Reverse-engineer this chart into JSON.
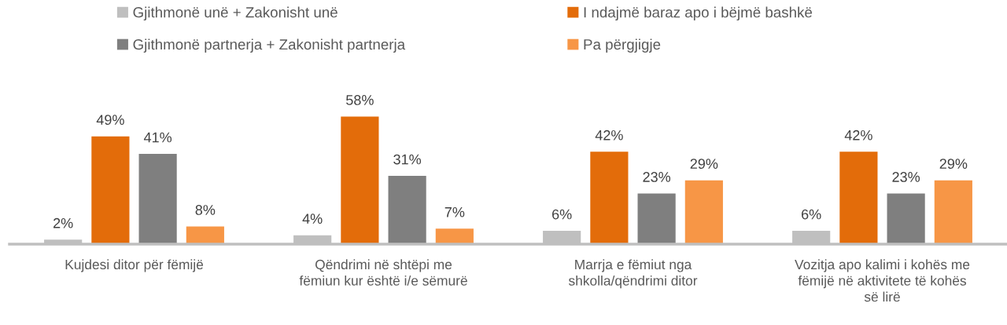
{
  "chart_data": {
    "type": "bar",
    "categories": [
      "Kujdesi ditor për fëmijë",
      "Qëndrimi në shtëpi me\nfëmiun kur është i/e sëmurë",
      "Marrja e fëmiut nga\nshkolla/qëndrimi ditor",
      "Vozitja apo kalimi i kohës me\nfëmijë në aktivitete të kohës\nsë lirë"
    ],
    "series": [
      {
        "name": "Gjithmonë unë + Zakonisht unë",
        "color": "#bfbfbf",
        "values": [
          2,
          4,
          6,
          6
        ],
        "value_labels": [
          "2%",
          "4%",
          "6%",
          "6%"
        ]
      },
      {
        "name": "I ndajmë baraz apo i bëjmë bashkë",
        "color": "#e36c0a",
        "values": [
          49,
          58,
          42,
          42
        ],
        "value_labels": [
          "49%",
          "58%",
          "42%",
          "42%"
        ]
      },
      {
        "name": "Gjithmonë partnerja + Zakonisht partnerja",
        "color": "#7f7f7f",
        "values": [
          41,
          31,
          23,
          23
        ],
        "value_labels": [
          "41%",
          "31%",
          "23%",
          "23%"
        ]
      },
      {
        "name": "Pa përgjigje",
        "color": "#f79646",
        "values": [
          8,
          7,
          29,
          29
        ],
        "value_labels": [
          "8%",
          "7%",
          "29%",
          "29%"
        ]
      }
    ],
    "legend": "top",
    "grid": false,
    "tick_labels": "x"
  }
}
